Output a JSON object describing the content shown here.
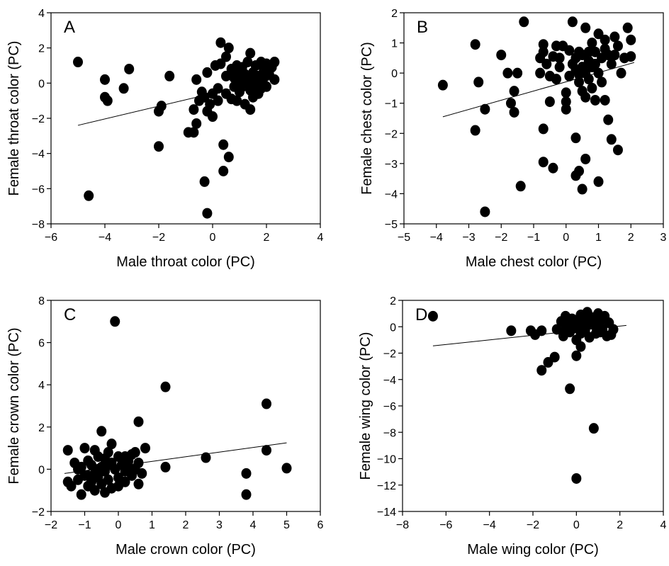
{
  "chart_data": [
    {
      "type": "scatter",
      "panel_label": "A",
      "xlabel": "Male throat color (PC)",
      "ylabel": "Female throat color (PC)",
      "xlim": [
        -6,
        4
      ],
      "ylim": [
        -8,
        4
      ],
      "xticks": [
        -6,
        -4,
        -2,
        0,
        2,
        4
      ],
      "yticks": [
        -8,
        -6,
        -4,
        -2,
        0,
        2,
        4
      ],
      "trend": {
        "x": [
          -5,
          2.3
        ],
        "y": [
          -2.4,
          0.25
        ]
      },
      "points": [
        [
          -5.0,
          1.2
        ],
        [
          -4.6,
          -6.4
        ],
        [
          -4.0,
          0.2
        ],
        [
          -4.0,
          -0.8
        ],
        [
          -3.9,
          -1.0
        ],
        [
          -3.3,
          -0.3
        ],
        [
          -3.1,
          0.8
        ],
        [
          -2.0,
          -3.6
        ],
        [
          -2.0,
          -1.6
        ],
        [
          -1.9,
          -1.3
        ],
        [
          -1.6,
          0.4
        ],
        [
          -0.9,
          -2.8
        ],
        [
          -0.7,
          -2.8
        ],
        [
          -0.6,
          -2.3
        ],
        [
          -0.6,
          0.2
        ],
        [
          -0.5,
          -1.0
        ],
        [
          -0.4,
          -0.5
        ],
        [
          -0.3,
          -0.8
        ],
        [
          -0.3,
          -5.6
        ],
        [
          -0.2,
          -7.4
        ],
        [
          -0.2,
          0.6
        ],
        [
          -0.2,
          -1.6
        ],
        [
          -0.1,
          -1.2
        ],
        [
          0.0,
          -0.6
        ],
        [
          0.1,
          1.0
        ],
        [
          0.2,
          -0.3
        ],
        [
          0.3,
          2.3
        ],
        [
          0.3,
          1.1
        ],
        [
          0.4,
          -3.5
        ],
        [
          0.4,
          -5.0
        ],
        [
          0.5,
          1.5
        ],
        [
          0.5,
          0.4
        ],
        [
          0.5,
          -0.6
        ],
        [
          0.6,
          2.0
        ],
        [
          0.6,
          -4.2
        ],
        [
          0.7,
          0.8
        ],
        [
          0.7,
          -0.9
        ],
        [
          0.8,
          -0.2
        ],
        [
          0.8,
          0.3
        ],
        [
          0.9,
          1.0
        ],
        [
          0.9,
          -1.0
        ],
        [
          1.0,
          0.1
        ],
        [
          1.0,
          -0.5
        ],
        [
          1.1,
          0.9
        ],
        [
          1.1,
          -0.2
        ],
        [
          1.2,
          0.5
        ],
        [
          1.2,
          -1.2
        ],
        [
          1.3,
          1.2
        ],
        [
          1.3,
          0.0
        ],
        [
          1.4,
          1.7
        ],
        [
          1.4,
          -0.4
        ],
        [
          1.4,
          -1.5
        ],
        [
          1.5,
          0.6
        ],
        [
          1.5,
          0.2
        ],
        [
          1.5,
          -0.8
        ],
        [
          1.6,
          1.0
        ],
        [
          1.6,
          -0.1
        ],
        [
          1.7,
          0.4
        ],
        [
          1.7,
          -0.6
        ],
        [
          1.8,
          1.2
        ],
        [
          1.8,
          0.0
        ],
        [
          1.8,
          -0.3
        ],
        [
          1.9,
          0.7
        ],
        [
          1.9,
          0.3
        ],
        [
          2.0,
          1.1
        ],
        [
          2.0,
          -0.2
        ],
        [
          2.1,
          0.5
        ],
        [
          2.2,
          0.9
        ],
        [
          2.3,
          1.2
        ],
        [
          2.3,
          0.2
        ],
        [
          -0.7,
          -1.5
        ],
        [
          0.0,
          -1.9
        ],
        [
          0.2,
          -1.0
        ],
        [
          1.0,
          0.6
        ],
        [
          1.3,
          0.3
        ]
      ]
    },
    {
      "type": "scatter",
      "panel_label": "B",
      "xlabel": "Male chest color (PC)",
      "ylabel": "Female chest color (PC)",
      "xlim": [
        -5,
        3
      ],
      "ylim": [
        -5,
        2
      ],
      "xticks": [
        -5,
        -4,
        -3,
        -2,
        -1,
        0,
        1,
        2,
        3
      ],
      "yticks": [
        -5,
        -4,
        -3,
        -2,
        -1,
        0,
        1,
        2
      ],
      "trend": {
        "x": [
          -3.8,
          2.1
        ],
        "y": [
          -1.45,
          0.35
        ]
      },
      "points": [
        [
          -3.8,
          -0.4
        ],
        [
          -2.8,
          0.95
        ],
        [
          -2.8,
          -1.9
        ],
        [
          -2.7,
          -0.3
        ],
        [
          -2.5,
          -1.2
        ],
        [
          -2.5,
          -4.6
        ],
        [
          -2.0,
          0.6
        ],
        [
          -1.8,
          0.0
        ],
        [
          -1.7,
          -1.0
        ],
        [
          -1.6,
          -0.6
        ],
        [
          -1.6,
          -1.3
        ],
        [
          -1.5,
          0.0
        ],
        [
          -1.4,
          -3.75
        ],
        [
          -1.3,
          1.7
        ],
        [
          -0.8,
          0.0
        ],
        [
          -0.8,
          0.5
        ],
        [
          -0.7,
          0.95
        ],
        [
          -0.7,
          0.7
        ],
        [
          -0.7,
          -1.85
        ],
        [
          -0.7,
          -2.95
        ],
        [
          -0.6,
          0.3
        ],
        [
          -0.5,
          -0.1
        ],
        [
          -0.5,
          -0.95
        ],
        [
          -0.4,
          0.55
        ],
        [
          -0.4,
          -3.15
        ],
        [
          -0.3,
          0.9
        ],
        [
          -0.3,
          -0.2
        ],
        [
          -0.2,
          0.2
        ],
        [
          -0.1,
          0.9
        ],
        [
          0.0,
          -0.95
        ],
        [
          0.0,
          -1.2
        ],
        [
          0.0,
          -0.65
        ],
        [
          0.1,
          0.75
        ],
        [
          0.1,
          -0.1
        ],
        [
          0.2,
          1.7
        ],
        [
          0.3,
          0.5
        ],
        [
          0.3,
          0.1
        ],
        [
          0.3,
          -2.15
        ],
        [
          0.3,
          -3.4
        ],
        [
          0.4,
          0.7
        ],
        [
          0.4,
          -0.3
        ],
        [
          0.4,
          -3.25
        ],
        [
          0.5,
          0.6
        ],
        [
          0.5,
          0.2
        ],
        [
          0.5,
          -0.6
        ],
        [
          0.5,
          -3.85
        ],
        [
          0.6,
          1.5
        ],
        [
          0.6,
          0.0
        ],
        [
          0.6,
          -0.8
        ],
        [
          0.6,
          -2.85
        ],
        [
          0.7,
          0.4
        ],
        [
          0.7,
          -0.2
        ],
        [
          0.8,
          1.0
        ],
        [
          0.8,
          0.2
        ],
        [
          0.8,
          -0.5
        ],
        [
          0.9,
          0.7
        ],
        [
          0.9,
          -0.9
        ],
        [
          1.0,
          1.3
        ],
        [
          1.0,
          0.0
        ],
        [
          1.0,
          -3.6
        ],
        [
          1.1,
          0.5
        ],
        [
          1.1,
          -0.3
        ],
        [
          1.2,
          1.1
        ],
        [
          1.2,
          0.8
        ],
        [
          1.2,
          -0.9
        ],
        [
          1.3,
          -1.55
        ],
        [
          1.4,
          0.3
        ],
        [
          1.4,
          -2.2
        ],
        [
          1.5,
          1.2
        ],
        [
          1.5,
          0.6
        ],
        [
          1.6,
          0.9
        ],
        [
          1.6,
          -2.55
        ],
        [
          1.7,
          0.0
        ],
        [
          1.8,
          0.5
        ],
        [
          1.9,
          1.5
        ],
        [
          2.0,
          1.1
        ],
        [
          2.0,
          0.55
        ],
        [
          0.2,
          0.3
        ],
        [
          0.7,
          0.7
        ],
        [
          0.9,
          0.3
        ],
        [
          1.3,
          0.6
        ],
        [
          0.4,
          -0.05
        ],
        [
          -0.2,
          0.5
        ]
      ]
    },
    {
      "type": "scatter",
      "panel_label": "C",
      "xlabel": "Male crown color (PC)",
      "ylabel": "Female crown color (PC)",
      "xlim": [
        -2,
        6
      ],
      "ylim": [
        -2,
        8
      ],
      "xticks": [
        -2,
        -1,
        0,
        1,
        2,
        3,
        4,
        5,
        6
      ],
      "yticks": [
        -2,
        0,
        2,
        4,
        6,
        8
      ],
      "trend": {
        "x": [
          -1.6,
          5.0
        ],
        "y": [
          -0.2,
          1.25
        ]
      },
      "points": [
        [
          -1.5,
          0.9
        ],
        [
          -1.5,
          -0.6
        ],
        [
          -1.4,
          -0.8
        ],
        [
          -1.3,
          0.3
        ],
        [
          -1.2,
          -0.5
        ],
        [
          -1.1,
          0.1
        ],
        [
          -1.1,
          -1.2
        ],
        [
          -1.0,
          1.0
        ],
        [
          -1.0,
          -0.3
        ],
        [
          -0.9,
          0.4
        ],
        [
          -0.9,
          -0.8
        ],
        [
          -0.8,
          0.2
        ],
        [
          -0.8,
          -0.6
        ],
        [
          -0.7,
          0.9
        ],
        [
          -0.7,
          -0.2
        ],
        [
          -0.7,
          -1.0
        ],
        [
          -0.6,
          0.6
        ],
        [
          -0.6,
          -0.4
        ],
        [
          -0.5,
          1.8
        ],
        [
          -0.5,
          0.1
        ],
        [
          -0.5,
          -0.7
        ],
        [
          -0.4,
          0.5
        ],
        [
          -0.4,
          -0.1
        ],
        [
          -0.4,
          -1.1
        ],
        [
          -0.3,
          0.8
        ],
        [
          -0.3,
          -0.5
        ],
        [
          -0.2,
          0.3
        ],
        [
          -0.2,
          -0.9
        ],
        [
          -0.2,
          1.2
        ],
        [
          -0.1,
          7.0
        ],
        [
          -0.1,
          0.0
        ],
        [
          0.0,
          0.6
        ],
        [
          0.0,
          -0.4
        ],
        [
          0.0,
          -0.8
        ],
        [
          0.1,
          0.2
        ],
        [
          0.1,
          0.5
        ],
        [
          0.2,
          -0.1
        ],
        [
          0.2,
          -0.6
        ],
        [
          0.3,
          0.4
        ],
        [
          0.3,
          0.1
        ],
        [
          0.4,
          0.7
        ],
        [
          0.4,
          -0.3
        ],
        [
          0.5,
          0.0
        ],
        [
          0.5,
          0.8
        ],
        [
          0.6,
          2.25
        ],
        [
          0.6,
          -0.7
        ],
        [
          0.6,
          0.3
        ],
        [
          0.7,
          -0.2
        ],
        [
          0.8,
          1.0
        ],
        [
          1.4,
          3.9
        ],
        [
          1.4,
          0.1
        ],
        [
          2.6,
          0.55
        ],
        [
          3.8,
          -0.2
        ],
        [
          3.8,
          -1.2
        ],
        [
          4.4,
          3.1
        ],
        [
          4.4,
          0.9
        ],
        [
          5.0,
          0.05
        ],
        [
          -1.2,
          0.0
        ],
        [
          -0.9,
          -0.3
        ],
        [
          -0.6,
          0.0
        ],
        [
          -0.3,
          0.2
        ],
        [
          0.2,
          0.6
        ]
      ]
    },
    {
      "type": "scatter",
      "panel_label": "D",
      "xlabel": "Male wing color (PC)",
      "ylabel": "Female wing color (PC)",
      "xlim": [
        -8,
        4
      ],
      "ylim": [
        -14,
        2
      ],
      "xticks": [
        -8,
        -6,
        -4,
        -2,
        0,
        2,
        4
      ],
      "yticks": [
        -14,
        -12,
        -10,
        -8,
        -6,
        -4,
        -2,
        0,
        2
      ],
      "trend": {
        "x": [
          -6.6,
          2.3
        ],
        "y": [
          -1.45,
          0.1
        ]
      },
      "points": [
        [
          -6.6,
          0.8
        ],
        [
          -3.0,
          -0.3
        ],
        [
          -2.1,
          -0.3
        ],
        [
          -1.9,
          -0.6
        ],
        [
          -1.6,
          -0.3
        ],
        [
          -1.6,
          -3.3
        ],
        [
          -1.3,
          -2.7
        ],
        [
          -1.0,
          -2.3
        ],
        [
          -0.9,
          -0.2
        ],
        [
          -0.7,
          0.4
        ],
        [
          -0.6,
          -0.7
        ],
        [
          -0.5,
          0.8
        ],
        [
          -0.4,
          0.1
        ],
        [
          -0.3,
          -0.4
        ],
        [
          -0.3,
          -4.7
        ],
        [
          -0.2,
          0.6
        ],
        [
          -0.1,
          -0.1
        ],
        [
          0.0,
          -1.0
        ],
        [
          0.0,
          -2.2
        ],
        [
          0.0,
          -11.5
        ],
        [
          0.1,
          0.3
        ],
        [
          0.2,
          0.9
        ],
        [
          0.2,
          -0.5
        ],
        [
          0.3,
          0.0
        ],
        [
          0.4,
          0.5
        ],
        [
          0.4,
          -0.3
        ],
        [
          0.5,
          1.1
        ],
        [
          0.6,
          0.2
        ],
        [
          0.6,
          -0.8
        ],
        [
          0.7,
          0.7
        ],
        [
          0.8,
          -7.7
        ],
        [
          0.9,
          0.0
        ],
        [
          0.9,
          -0.5
        ],
        [
          1.0,
          1.0
        ],
        [
          1.1,
          0.4
        ],
        [
          1.2,
          -0.2
        ],
        [
          1.3,
          0.8
        ],
        [
          1.4,
          -0.7
        ],
        [
          1.5,
          0.3
        ],
        [
          1.6,
          -0.6
        ],
        [
          1.7,
          -0.2
        ],
        [
          0.3,
          0.4
        ],
        [
          -0.1,
          0.5
        ],
        [
          0.7,
          0.3
        ],
        [
          1.1,
          -0.4
        ],
        [
          -0.5,
          -0.2
        ],
        [
          0.2,
          -1.5
        ]
      ]
    }
  ]
}
